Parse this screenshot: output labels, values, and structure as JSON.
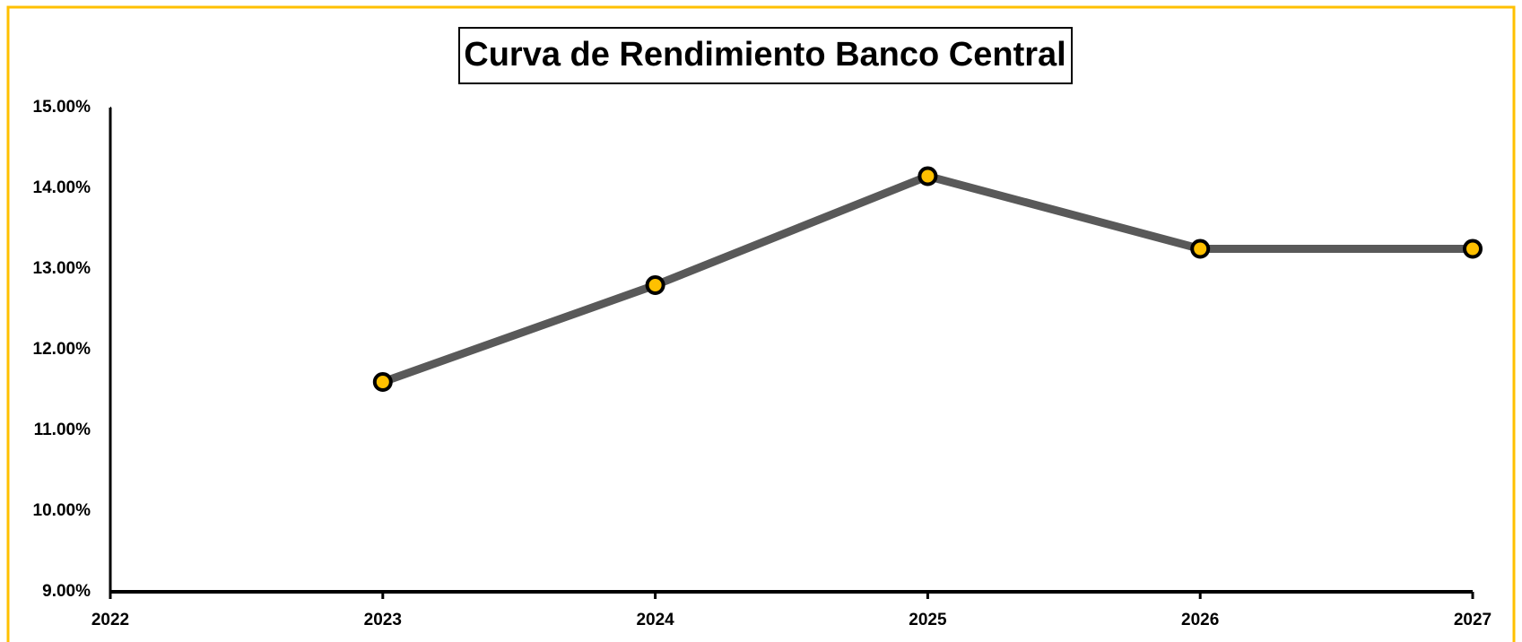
{
  "chart_data": {
    "type": "line",
    "title": "Curva de Rendimiento Banco Central",
    "x": [
      2023,
      2024,
      2025,
      2026,
      2027
    ],
    "series": [
      {
        "name": null,
        "color": "#595959",
        "marker_color": "#ffc000",
        "values": [
          11.6,
          12.8,
          14.15,
          13.25,
          13.25
        ]
      }
    ],
    "xlim": [
      2022,
      2027
    ],
    "xticks": [
      2022,
      2023,
      2024,
      2025,
      2026,
      2027
    ],
    "ylim": [
      9,
      15
    ],
    "yticks": [
      {
        "value": 9,
        "label": "9.00%"
      },
      {
        "value": 10,
        "label": "10.00%"
      },
      {
        "value": 11,
        "label": "11.00%"
      },
      {
        "value": 12,
        "label": "12.00%"
      },
      {
        "value": 13,
        "label": "13.00%"
      },
      {
        "value": 14,
        "label": "14.00%"
      },
      {
        "value": 15,
        "label": "15.00%"
      }
    ],
    "grid": false
  }
}
